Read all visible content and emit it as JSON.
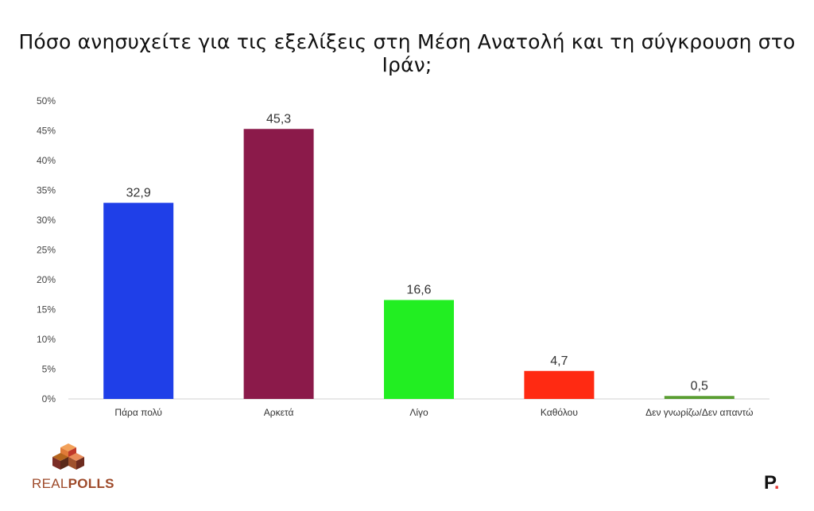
{
  "chart_data": {
    "type": "bar",
    "title": "Πόσο ανησυχείτε για τις εξελίξεις στη Μέση Ανατολή και τη σύγκρουση στο Ιράν;",
    "categories": [
      "Πάρα πολύ",
      "Αρκετά",
      "Λίγο",
      "Καθόλου",
      "Δεν γνωρίζω/Δεν απαντώ"
    ],
    "values": [
      32.9,
      45.3,
      16.6,
      4.7,
      0.5
    ],
    "value_labels": [
      "32,9",
      "45,3",
      "16,6",
      "4,7",
      "0,5"
    ],
    "colors": [
      "#1f3fe8",
      "#8b1a4a",
      "#22ee22",
      "#ff2a12",
      "#5a9e32"
    ],
    "ylim": [
      0,
      50
    ],
    "yticks": [
      "0%",
      "5%",
      "10%",
      "15%",
      "20%",
      "25%",
      "30%",
      "35%",
      "40%",
      "45%",
      "50%"
    ],
    "xlabel": "",
    "ylabel": "",
    "grid": false,
    "legend": "none"
  },
  "branding": {
    "left_logo_text_a": "REAL",
    "left_logo_text_b": "POLLS",
    "left_logo_tagline": "",
    "right_logo_letter": "P",
    "right_logo_dot": "."
  }
}
